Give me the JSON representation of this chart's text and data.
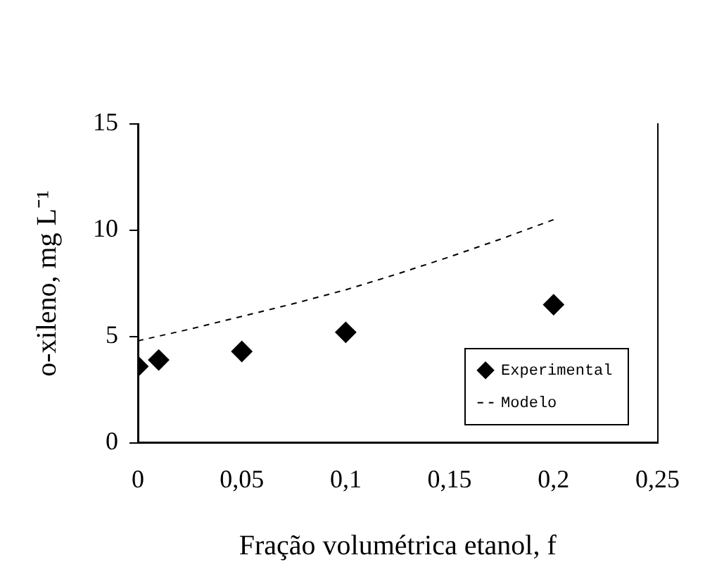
{
  "chart_data": {
    "type": "scatter",
    "xlabel": "Fração volumétrica etanol, f",
    "ylabel": "o-xileno, mg L⁻¹",
    "xlim": [
      0,
      0.25
    ],
    "xticks": [
      0,
      {
        "value": 0.05,
        "label": "0,05"
      },
      {
        "value": 0.1,
        "label": "0,1"
      },
      {
        "value": 0.15,
        "label": "0,15"
      },
      {
        "value": 0.2,
        "label": "0,2"
      },
      {
        "value": 0.25,
        "label": "0,25"
      }
    ],
    "ylim": [
      0,
      15
    ],
    "yticks": [
      0,
      5,
      10,
      15
    ],
    "grid": false,
    "legend": "bottom right",
    "series": [
      {
        "name": "Experimental",
        "color": "#000000",
        "marker": "diamond",
        "x": [
          0,
          0.01,
          0.05,
          0.1,
          0.2
        ],
        "values": [
          3.6,
          3.9,
          4.3,
          5.2,
          6.5
        ]
      },
      {
        "name": "Modelo",
        "type": "line",
        "color": "#000000",
        "marker": "none",
        "line_style": "dashed",
        "x": [
          0,
          0.025,
          0.05,
          0.075,
          0.1,
          0.125,
          0.15,
          0.175,
          0.2
        ],
        "values": [
          4.8,
          5.35,
          5.95,
          6.55,
          7.2,
          7.95,
          8.75,
          9.6,
          10.5
        ]
      }
    ]
  }
}
